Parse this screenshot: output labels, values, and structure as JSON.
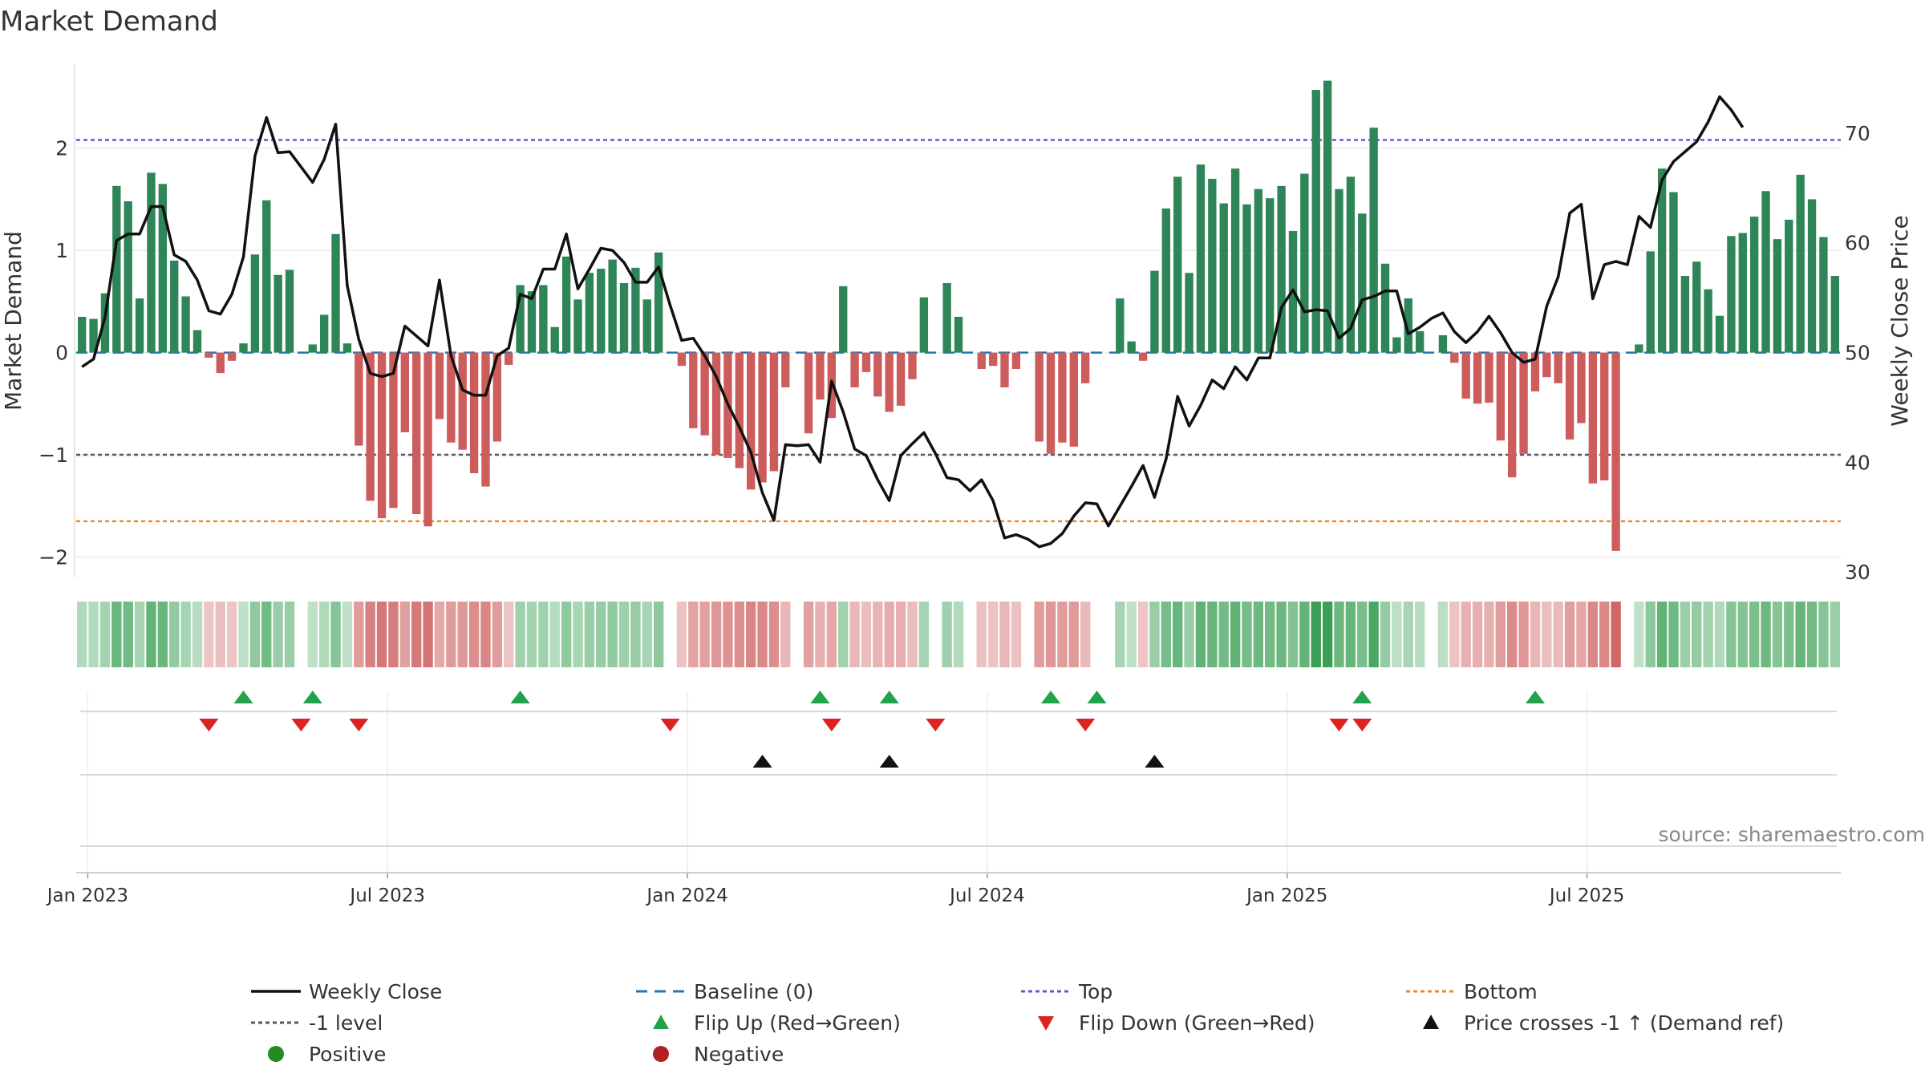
{
  "chart_data": {
    "type": "bar+line",
    "title": "Market Demand",
    "ylabel": "Market Demand",
    "y2label": "Weekly Close Price",
    "source": "source: sharemaestro.com",
    "ylim": [
      -2.2,
      2.9
    ],
    "y2lim": [
      29.5,
      77
    ],
    "y_ticks": [
      -2,
      -1,
      0,
      1,
      2
    ],
    "y_tick_labels": [
      "−2",
      "−1",
      "0",
      "1",
      "2"
    ],
    "y2_ticks": [
      30,
      40,
      50,
      60,
      70
    ],
    "y2_tick_labels": [
      "30",
      "40",
      "50",
      "60",
      "70"
    ],
    "x_tick_labels": [
      "Jan 2023",
      "Jul 2023",
      "Jan 2024",
      "Jul 2024",
      "Jan 2025",
      "Jul 2025"
    ],
    "x_tick_weeks": [
      0.5,
      26.5,
      52.5,
      78.5,
      104.5,
      130.5
    ],
    "reference_lines": {
      "top": 2.08,
      "minus_one": -1.0,
      "bottom": -1.65,
      "baseline": 0
    },
    "demand": [
      0.35,
      0.33,
      0.58,
      1.63,
      1.48,
      0.53,
      1.76,
      1.65,
      0.9,
      0.55,
      0.22,
      -0.05,
      -0.2,
      -0.08,
      0.09,
      0.96,
      1.49,
      0.76,
      0.81,
      0,
      0.08,
      0.37,
      1.16,
      0.09,
      -0.91,
      -1.45,
      -1.62,
      -1.52,
      -0.78,
      -1.58,
      -1.7,
      -0.65,
      -0.88,
      -0.95,
      -1.18,
      -1.31,
      -0.87,
      -0.12,
      0.66,
      0.6,
      0.66,
      0.25,
      0.94,
      0.52,
      0.78,
      0.82,
      0.91,
      0.68,
      0.83,
      0.52,
      0.98,
      0,
      -0.13,
      -0.74,
      -0.81,
      -1.0,
      -1.03,
      -1.13,
      -1.34,
      -1.27,
      -1.16,
      -0.34,
      0,
      -0.79,
      -0.46,
      -0.64,
      0.65,
      -0.34,
      -0.19,
      -0.43,
      -0.58,
      -0.52,
      -0.26,
      0.54,
      0,
      0.68,
      0.35,
      0,
      -0.16,
      -0.13,
      -0.34,
      -0.16,
      0,
      -0.87,
      -0.99,
      -0.88,
      -0.92,
      -0.3,
      0,
      0,
      0.53,
      0.11,
      -0.08,
      0.8,
      1.41,
      1.72,
      0.78,
      1.84,
      1.7,
      1.46,
      1.8,
      1.45,
      1.6,
      1.51,
      1.63,
      1.19,
      1.75,
      2.57,
      2.66,
      1.6,
      1.72,
      1.36,
      2.2,
      0.87,
      0.15,
      0.53,
      0.21,
      0,
      0.17,
      -0.1,
      -0.45,
      -0.5,
      -0.49,
      -0.86,
      -1.22,
      -0.99,
      -0.38,
      -0.24,
      -0.3,
      -0.85,
      -0.69,
      -1.28,
      -1.25,
      -1.94,
      0,
      0.08,
      0.99,
      1.8,
      1.57,
      0.75,
      0.89,
      0.62,
      0.36,
      1.14,
      1.17,
      1.33,
      1.58,
      1.11,
      1.3,
      1.74,
      1.5,
      1.13,
      0.75
    ],
    "weekly_close": [
      48.7,
      49.4,
      53.2,
      60.2,
      60.8,
      60.8,
      63.3,
      63.3,
      58.9,
      58.3,
      56.6,
      53.8,
      53.5,
      55.3,
      58.7,
      67.9,
      71.4,
      68.2,
      68.3,
      66.9,
      65.5,
      67.6,
      70.8,
      56.1,
      51.2,
      48.1,
      47.8,
      48.1,
      52.4,
      51.5,
      50.6,
      56.6,
      49.7,
      46.6,
      46.1,
      46.1,
      49.7,
      50.4,
      55.3,
      54.9,
      57.6,
      57.6,
      60.8,
      55.8,
      57.6,
      59.5,
      59.3,
      58.2,
      56.4,
      56.4,
      57.8,
      54.3,
      51.1,
      51.3,
      49.7,
      47.8,
      45.3,
      43.2,
      40.9,
      37.2,
      34.7,
      41.6,
      41.5,
      41.6,
      40.0,
      47.4,
      44.6,
      41.2,
      40.6,
      38.4,
      36.5,
      40.6,
      41.7,
      42.7,
      40.8,
      38.6,
      38.4,
      37.4,
      38.4,
      36.5,
      33.1,
      33.4,
      33.0,
      32.3,
      32.6,
      33.5,
      35.1,
      36.3,
      36.2,
      34.2,
      36.0,
      37.8,
      39.7,
      36.8,
      40.3,
      46.0,
      43.3,
      45.2,
      47.5,
      46.7,
      48.7,
      47.5,
      49.5,
      49.5,
      54.1,
      55.7,
      53.7,
      53.9,
      53.8,
      51.3,
      52.2,
      54.8,
      55.1,
      55.6,
      55.6,
      51.7,
      52.3,
      53.1,
      53.6,
      51.9,
      50.9,
      51.9,
      53.3,
      51.8,
      50.0,
      49.1,
      49.4,
      54.2,
      56.9,
      62.7,
      63.5,
      54.9,
      58.0,
      58.3,
      58.0,
      62.4,
      61.4,
      65.7,
      67.4,
      68.3,
      69.2,
      71.0,
      73.3,
      72.1,
      70.5
    ],
    "flip_up_weeks": [
      14,
      20,
      38,
      64,
      70,
      84,
      88,
      111,
      126
    ],
    "flip_down_weeks": [
      11,
      19,
      24,
      51,
      65,
      74,
      87,
      109,
      111
    ],
    "price_cross_weeks": [
      59,
      70,
      93
    ],
    "legend": [
      {
        "label": "Weekly Close",
        "symbol": "line-solid",
        "color": "#111111"
      },
      {
        "label": "Baseline (0)",
        "symbol": "line-dashed",
        "color": "#1f77b4"
      },
      {
        "label": "Top",
        "symbol": "line-dotted",
        "color": "#5b5bd6"
      },
      {
        "label": "Bottom",
        "symbol": "line-dotted",
        "color": "#ee8822"
      },
      {
        "label": "-1 level",
        "symbol": "line-dotted",
        "color": "#555566"
      },
      {
        "label": "Flip Up (Red→Green)",
        "symbol": "triangle-up",
        "color": "#22a24a"
      },
      {
        "label": "Flip Down (Green→Red)",
        "symbol": "triangle-down",
        "color": "#dd2222"
      },
      {
        "label": "Price crosses -1 ↑ (Demand ref)",
        "symbol": "triangle-up",
        "color": "#111111"
      },
      {
        "label": "Positive",
        "symbol": "circle",
        "color": "#228b22"
      },
      {
        "label": "Negative",
        "symbol": "circle",
        "color": "#b22222"
      }
    ],
    "colors": {
      "positive": "#2e8557",
      "negative": "#cd5c5c",
      "heat_pos": "#3ba055",
      "heat_neg": "#c84a4a"
    }
  }
}
